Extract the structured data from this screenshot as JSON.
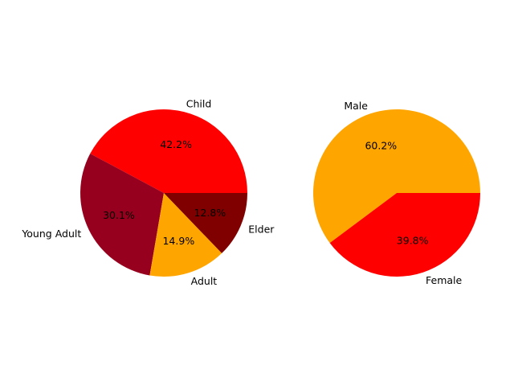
{
  "chart_data": [
    {
      "type": "pie",
      "title": "",
      "labels": [
        "Child",
        "Young Adult",
        "Adult",
        "Elder"
      ],
      "values": [
        42.2,
        30.1,
        14.9,
        12.8
      ],
      "pct_labels": [
        "42.2%",
        "30.1%",
        "14.9%",
        "12.8%"
      ],
      "colors": [
        "#ff0000",
        "#96001e",
        "#ffa500",
        "#800000"
      ],
      "start_angle": 0,
      "direction": "counterclockwise"
    },
    {
      "type": "pie",
      "title": "",
      "labels": [
        "Male",
        "Female"
      ],
      "values": [
        60.2,
        39.8
      ],
      "pct_labels": [
        "60.2%",
        "39.8%"
      ],
      "colors": [
        "#ffa500",
        "#ff0000"
      ],
      "start_angle": 0,
      "direction": "counterclockwise"
    }
  ]
}
